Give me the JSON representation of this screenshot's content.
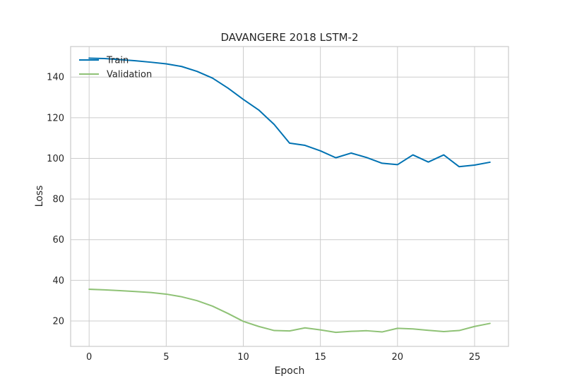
{
  "chart_data": {
    "type": "line",
    "title": "DAVANGERE 2018 LSTM-2",
    "xlabel": "Epoch",
    "ylabel": "Loss",
    "xlim": [
      -1.2,
      27.2
    ],
    "ylim": [
      7.5,
      155
    ],
    "xticks": [
      0,
      5,
      10,
      15,
      20,
      25
    ],
    "yticks": [
      20,
      40,
      60,
      80,
      100,
      120,
      140
    ],
    "grid": true,
    "legend_position": "top-left",
    "x": [
      0,
      1,
      2,
      3,
      4,
      5,
      6,
      7,
      8,
      9,
      10,
      11,
      12,
      13,
      14,
      15,
      16,
      17,
      18,
      19,
      20,
      21,
      22,
      23,
      24,
      25,
      26
    ],
    "series": [
      {
        "name": "Train",
        "color": "#0072b2",
        "values": [
          149.3,
          149.1,
          148.6,
          148.0,
          147.3,
          146.5,
          145.2,
          142.8,
          139.5,
          134.6,
          129.0,
          123.8,
          116.7,
          107.5,
          106.4,
          103.7,
          100.3,
          102.6,
          100.4,
          97.6,
          96.9,
          101.7,
          98.2,
          101.7,
          95.9,
          96.7,
          98.1
        ]
      },
      {
        "name": "Validation",
        "color": "#8fc276",
        "values": [
          35.6,
          35.3,
          34.9,
          34.5,
          34.0,
          33.2,
          31.9,
          30.0,
          27.3,
          23.7,
          19.8,
          17.3,
          15.3,
          15.1,
          16.6,
          15.6,
          14.4,
          14.9,
          15.2,
          14.6,
          16.4,
          16.1,
          15.4,
          14.8,
          15.3,
          17.3,
          18.8
        ]
      }
    ]
  }
}
